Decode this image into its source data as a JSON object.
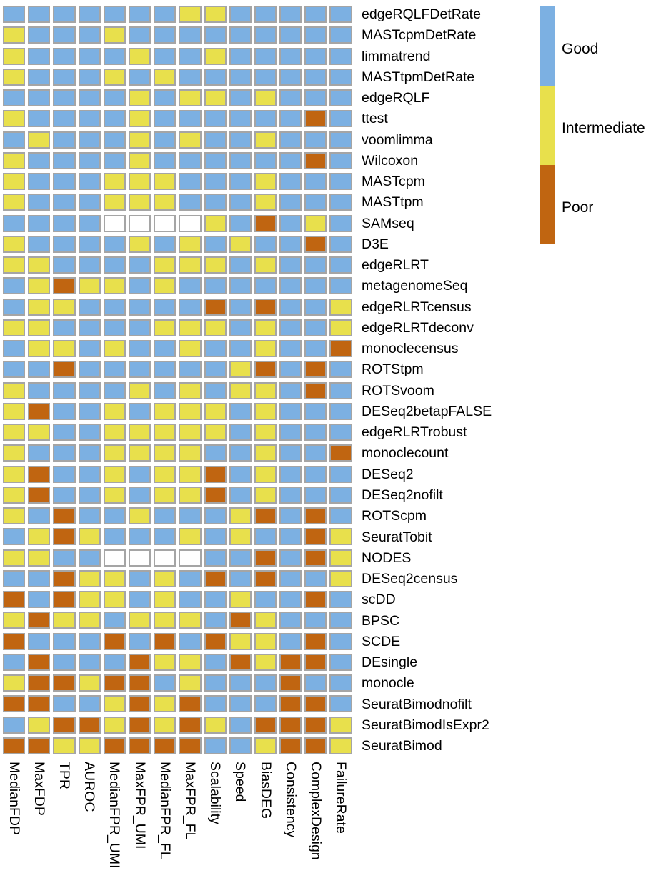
{
  "chart_data": {
    "type": "heatmap",
    "title": "",
    "legend_position": "right",
    "grid": "off",
    "cell_border_color": "#a5a5a5",
    "value_scale": {
      "G": {
        "label": "Good",
        "color": "#7cb0e2"
      },
      "I": {
        "label": "Intermediate",
        "color": "#e8e04c"
      },
      "P": {
        "label": "Poor",
        "color": "#c06511"
      },
      "NA": {
        "label": "",
        "color": "#ffffff"
      }
    },
    "legend": [
      {
        "code": "G",
        "label": "Good"
      },
      {
        "code": "I",
        "label": "Intermediate"
      },
      {
        "code": "P",
        "label": "Poor"
      }
    ],
    "columns": [
      "MedianFDP",
      "MaxFDP",
      "TPR",
      "AUROC",
      "MedianFPR_UMI",
      "MaxFPR_UMI",
      "MedianFPR_FL",
      "MaxFPR_FL",
      "Scalability",
      "Speed",
      "BiasDEG",
      "Consistency",
      "ComplexDesign",
      "FailureRate"
    ],
    "rows": [
      {
        "name": "edgeRQLFDetRate",
        "values": [
          "G",
          "G",
          "G",
          "G",
          "G",
          "G",
          "G",
          "I",
          "I",
          "G",
          "G",
          "G",
          "G",
          "G"
        ]
      },
      {
        "name": "MASTcpmDetRate",
        "values": [
          "I",
          "G",
          "G",
          "G",
          "I",
          "G",
          "G",
          "G",
          "G",
          "G",
          "G",
          "G",
          "G",
          "G"
        ]
      },
      {
        "name": "limmatrend",
        "values": [
          "I",
          "G",
          "G",
          "G",
          "G",
          "I",
          "G",
          "G",
          "I",
          "G",
          "G",
          "G",
          "G",
          "G"
        ]
      },
      {
        "name": "MASTtpmDetRate",
        "values": [
          "I",
          "G",
          "G",
          "G",
          "I",
          "G",
          "I",
          "G",
          "G",
          "G",
          "G",
          "G",
          "G",
          "G"
        ]
      },
      {
        "name": "edgeRQLF",
        "values": [
          "G",
          "G",
          "G",
          "G",
          "G",
          "I",
          "G",
          "I",
          "I",
          "G",
          "I",
          "G",
          "G",
          "G"
        ]
      },
      {
        "name": "ttest",
        "values": [
          "I",
          "G",
          "G",
          "G",
          "G",
          "I",
          "G",
          "G",
          "G",
          "G",
          "G",
          "G",
          "P",
          "G"
        ]
      },
      {
        "name": "voomlimma",
        "values": [
          "G",
          "I",
          "G",
          "G",
          "G",
          "I",
          "G",
          "I",
          "G",
          "G",
          "I",
          "G",
          "G",
          "G"
        ]
      },
      {
        "name": "Wilcoxon",
        "values": [
          "I",
          "G",
          "G",
          "G",
          "G",
          "I",
          "G",
          "G",
          "G",
          "G",
          "G",
          "G",
          "P",
          "G"
        ]
      },
      {
        "name": "MASTcpm",
        "values": [
          "I",
          "G",
          "G",
          "G",
          "I",
          "I",
          "I",
          "G",
          "G",
          "G",
          "I",
          "G",
          "G",
          "G"
        ]
      },
      {
        "name": "MASTtpm",
        "values": [
          "I",
          "G",
          "G",
          "G",
          "I",
          "I",
          "I",
          "G",
          "G",
          "G",
          "I",
          "G",
          "G",
          "G"
        ]
      },
      {
        "name": "SAMseq",
        "values": [
          "G",
          "G",
          "G",
          "G",
          "NA",
          "NA",
          "NA",
          "NA",
          "I",
          "G",
          "P",
          "G",
          "I",
          "G"
        ]
      },
      {
        "name": "D3E",
        "values": [
          "I",
          "G",
          "G",
          "G",
          "G",
          "I",
          "G",
          "I",
          "G",
          "I",
          "G",
          "G",
          "P",
          "G"
        ]
      },
      {
        "name": "edgeRLRT",
        "values": [
          "I",
          "I",
          "G",
          "G",
          "G",
          "G",
          "I",
          "I",
          "I",
          "G",
          "I",
          "G",
          "G",
          "G"
        ]
      },
      {
        "name": "metagenomeSeq",
        "values": [
          "G",
          "I",
          "P",
          "I",
          "I",
          "G",
          "I",
          "G",
          "G",
          "G",
          "G",
          "G",
          "G",
          "G"
        ]
      },
      {
        "name": "edgeRLRTcensus",
        "values": [
          "G",
          "I",
          "I",
          "G",
          "G",
          "G",
          "G",
          "G",
          "P",
          "G",
          "P",
          "G",
          "G",
          "I"
        ]
      },
      {
        "name": "edgeRLRTdeconv",
        "values": [
          "I",
          "I",
          "G",
          "G",
          "G",
          "G",
          "I",
          "I",
          "I",
          "G",
          "I",
          "G",
          "G",
          "I"
        ]
      },
      {
        "name": "monoclecensus",
        "values": [
          "G",
          "I",
          "I",
          "G",
          "I",
          "G",
          "G",
          "I",
          "G",
          "G",
          "I",
          "G",
          "G",
          "P"
        ]
      },
      {
        "name": "ROTStpm",
        "values": [
          "G",
          "G",
          "P",
          "G",
          "G",
          "G",
          "G",
          "G",
          "G",
          "I",
          "P",
          "G",
          "P",
          "G"
        ]
      },
      {
        "name": "ROTSvoom",
        "values": [
          "I",
          "G",
          "G",
          "G",
          "G",
          "I",
          "G",
          "I",
          "G",
          "I",
          "I",
          "G",
          "P",
          "G"
        ]
      },
      {
        "name": "DESeq2betapFALSE",
        "values": [
          "I",
          "P",
          "G",
          "G",
          "I",
          "G",
          "I",
          "I",
          "I",
          "G",
          "I",
          "G",
          "G",
          "G"
        ]
      },
      {
        "name": "edgeRLRTrobust",
        "values": [
          "I",
          "I",
          "G",
          "G",
          "I",
          "I",
          "I",
          "I",
          "I",
          "G",
          "I",
          "G",
          "G",
          "G"
        ]
      },
      {
        "name": "monoclecount",
        "values": [
          "I",
          "G",
          "G",
          "G",
          "I",
          "I",
          "I",
          "I",
          "G",
          "G",
          "I",
          "G",
          "G",
          "P"
        ]
      },
      {
        "name": "DESeq2",
        "values": [
          "I",
          "P",
          "G",
          "G",
          "I",
          "G",
          "I",
          "I",
          "P",
          "G",
          "I",
          "G",
          "G",
          "G"
        ]
      },
      {
        "name": "DESeq2nofilt",
        "values": [
          "I",
          "P",
          "G",
          "G",
          "I",
          "G",
          "I",
          "I",
          "P",
          "G",
          "I",
          "G",
          "G",
          "G"
        ]
      },
      {
        "name": "ROTScpm",
        "values": [
          "I",
          "G",
          "P",
          "G",
          "G",
          "I",
          "G",
          "G",
          "G",
          "I",
          "P",
          "G",
          "P",
          "G"
        ]
      },
      {
        "name": "SeuratTobit",
        "values": [
          "G",
          "I",
          "P",
          "I",
          "G",
          "G",
          "G",
          "I",
          "G",
          "I",
          "G",
          "G",
          "P",
          "I"
        ]
      },
      {
        "name": "NODES",
        "values": [
          "I",
          "I",
          "G",
          "G",
          "NA",
          "NA",
          "NA",
          "NA",
          "G",
          "G",
          "P",
          "G",
          "P",
          "I"
        ]
      },
      {
        "name": "DESeq2census",
        "values": [
          "G",
          "G",
          "P",
          "I",
          "I",
          "G",
          "I",
          "G",
          "P",
          "G",
          "P",
          "G",
          "G",
          "I"
        ]
      },
      {
        "name": "scDD",
        "values": [
          "P",
          "G",
          "P",
          "I",
          "I",
          "G",
          "I",
          "G",
          "G",
          "I",
          "G",
          "G",
          "P",
          "G"
        ]
      },
      {
        "name": "BPSC",
        "values": [
          "I",
          "P",
          "I",
          "I",
          "G",
          "I",
          "I",
          "I",
          "G",
          "P",
          "I",
          "G",
          "G",
          "G"
        ]
      },
      {
        "name": "SCDE",
        "values": [
          "P",
          "G",
          "G",
          "G",
          "P",
          "G",
          "P",
          "G",
          "P",
          "I",
          "I",
          "G",
          "P",
          "G"
        ]
      },
      {
        "name": "DEsingle",
        "values": [
          "G",
          "P",
          "G",
          "G",
          "G",
          "P",
          "I",
          "I",
          "G",
          "P",
          "I",
          "P",
          "P",
          "G"
        ]
      },
      {
        "name": "monocle",
        "values": [
          "I",
          "P",
          "P",
          "I",
          "P",
          "P",
          "G",
          "I",
          "G",
          "G",
          "G",
          "P",
          "G",
          "G"
        ]
      },
      {
        "name": "SeuratBimodnofilt",
        "values": [
          "P",
          "P",
          "G",
          "G",
          "I",
          "P",
          "I",
          "P",
          "G",
          "G",
          "G",
          "P",
          "P",
          "G"
        ]
      },
      {
        "name": "SeuratBimodIsExpr2",
        "values": [
          "G",
          "I",
          "P",
          "P",
          "I",
          "P",
          "I",
          "P",
          "I",
          "G",
          "P",
          "P",
          "P",
          "I"
        ]
      },
      {
        "name": "SeuratBimod",
        "values": [
          "P",
          "P",
          "I",
          "I",
          "P",
          "P",
          "P",
          "P",
          "G",
          "G",
          "I",
          "P",
          "P",
          "I"
        ]
      }
    ]
  }
}
